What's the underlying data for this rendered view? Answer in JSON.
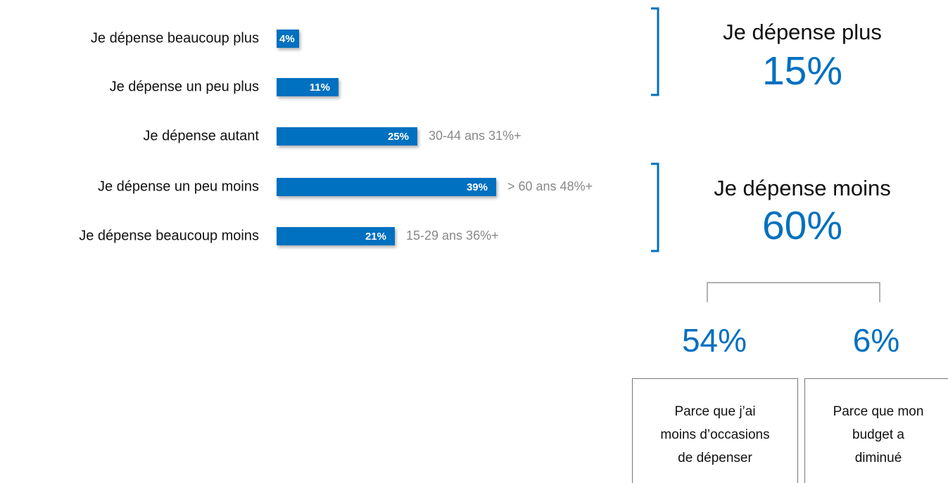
{
  "chart_data": {
    "type": "bar",
    "orientation": "horizontal",
    "color": "#0070c0",
    "categories": [
      "Je dépense beaucoup plus",
      "Je dépense un peu plus",
      "Je dépense autant",
      "Je dépense un peu moins",
      "Je dépense beaucoup moins"
    ],
    "values": [
      4,
      11,
      25,
      39,
      21
    ],
    "value_labels": [
      "4%",
      "11%",
      "25%",
      "39%",
      "21%"
    ],
    "annotations": [
      null,
      null,
      "30-44 ans 31%+",
      "> 60 ans 48%+",
      "15-29 ans 36%+"
    ],
    "summaries": [
      {
        "title": "Je dépense plus",
        "value": 15,
        "value_label": "15%"
      },
      {
        "title": "Je dépense moins",
        "value": 60,
        "value_label": "60%"
      }
    ],
    "breakdown": [
      {
        "value": 54,
        "value_label": "54%",
        "text": "Parce que j’ai moins d’occasions de dépenser"
      },
      {
        "value": 6,
        "value_label": "6%",
        "text": "Parce que mon budget a diminué"
      }
    ]
  }
}
